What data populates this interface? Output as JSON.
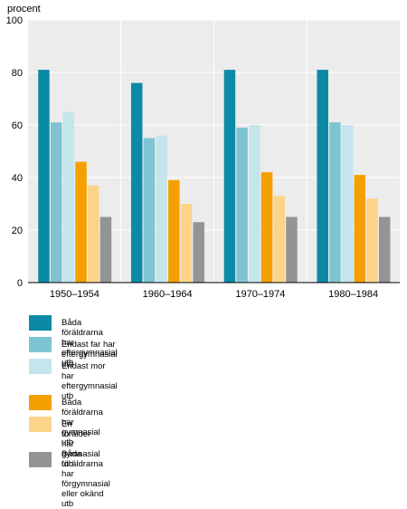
{
  "chart_data": {
    "type": "bar",
    "ylabel": "procent",
    "ylim": [
      0,
      100
    ],
    "yticks": [
      0,
      20,
      40,
      60,
      80,
      100
    ],
    "grid": true,
    "categories": [
      "1950–1954",
      "1960–1964",
      "1970–1974",
      "1980–1984"
    ],
    "series": [
      {
        "name": "Båda föräldrarna har eftergymnasial utb",
        "color": "#0c8aa5",
        "values": [
          81,
          76,
          81,
          81
        ]
      },
      {
        "name": "Endast far har eftergymnasial utb",
        "color": "#7fc4d2",
        "values": [
          61,
          55,
          59,
          61
        ]
      },
      {
        "name": "Endast mor har eftergymnasial utb",
        "color": "#c4e5ec",
        "values": [
          65,
          56,
          60,
          60
        ]
      },
      {
        "name": "Båda föräldrarna har gymnasial utb",
        "color": "#f5a000",
        "values": [
          46,
          39,
          42,
          41
        ]
      },
      {
        "name": "En förälder har gymnasial utb",
        "color": "#fbd48a",
        "values": [
          37,
          30,
          33,
          32
        ]
      },
      {
        "name": "Båda föräldrarna har förgymnasial\neller okänd utb",
        "color": "#949494",
        "values": [
          25,
          23,
          25,
          25
        ]
      }
    ]
  }
}
